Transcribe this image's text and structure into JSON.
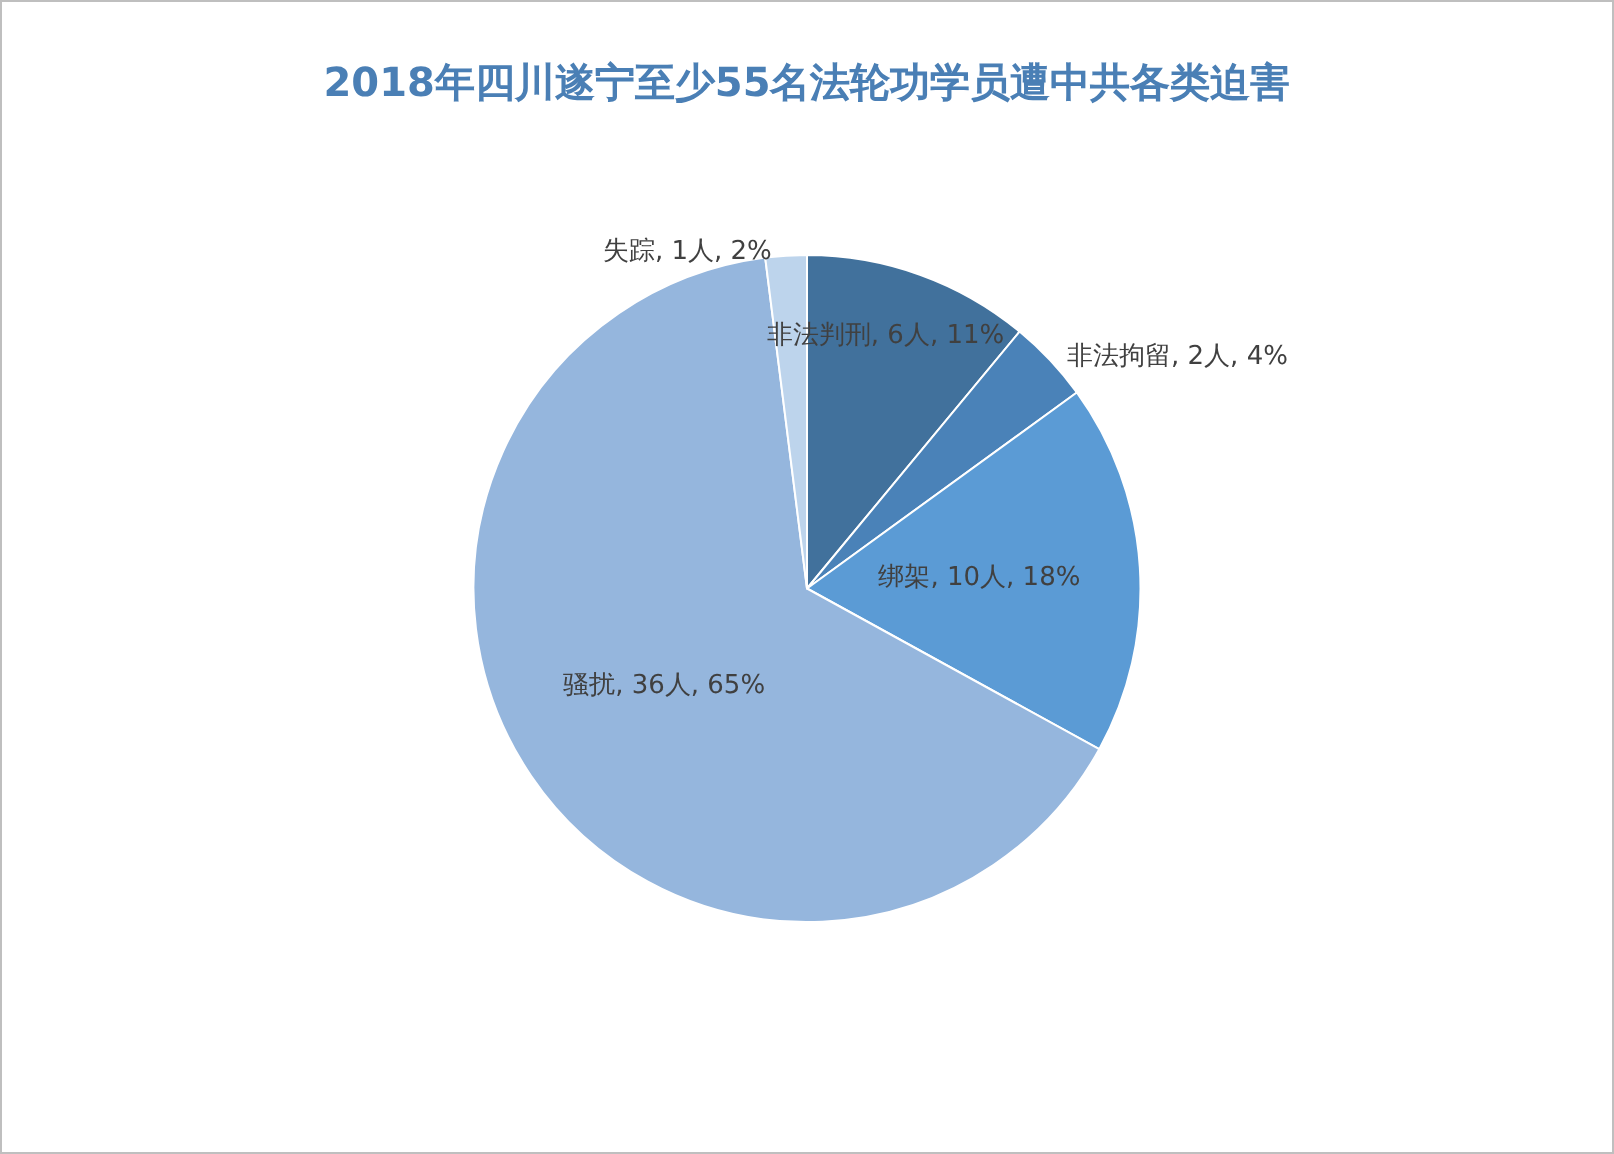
{
  "chart_data": {
    "type": "pie",
    "title": "2018年四川遂宁至少55名法轮功学员遭中共各类迫害",
    "categories": [
      "非法判刑, 6人, 11%",
      "非法拘留, 2人, 4%",
      "绑架, 10人, 18%",
      "骚扰, 36人, 65%",
      "失踪, 1人, 2%"
    ],
    "values": [
      11,
      4,
      18,
      65,
      2
    ],
    "colors": [
      "#41719c",
      "#4a82b8",
      "#5b9bd5",
      "#95b6dd",
      "#bdd4ec"
    ],
    "legend": false
  }
}
